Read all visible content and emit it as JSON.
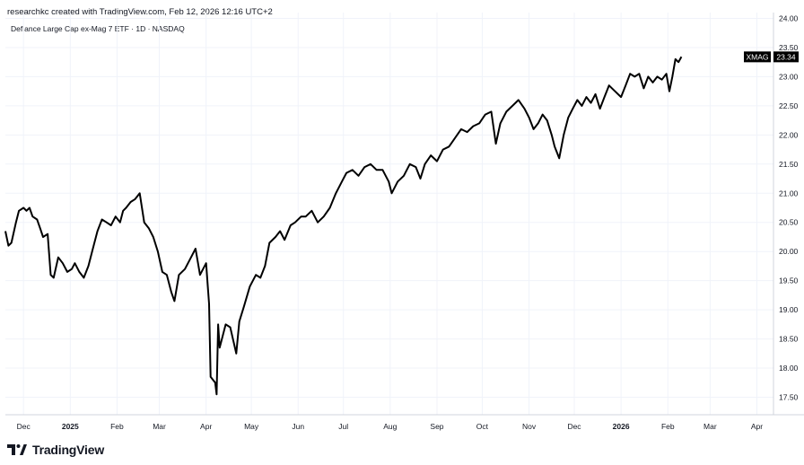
{
  "header": {
    "creator_line": "researchkc created with TradingView.com, Feb 12, 2026 12:16 UTC+2",
    "symbol_title": "Defiance Large Cap ex-Mag 7 ETF · 1D · NASDAQ"
  },
  "footer": {
    "brand": "TradingView",
    "logo_icon": "tradingview-logo-icon"
  },
  "colors": {
    "line": "#000000",
    "grid": "#f0f3fa",
    "axis": "#d1d4dc",
    "price_label_bg": "#000000",
    "price_label_text": "#ffffff"
  },
  "chart_data": {
    "type": "line",
    "title": "Defiance Large Cap ex-Mag 7 ETF · 1D · NASDAQ",
    "ticker": "XMAG",
    "last_price": "23.34",
    "xlabel": "",
    "ylabel": "",
    "ylim": [
      17.2,
      24.1
    ],
    "grid": true,
    "x_ticks": [
      {
        "label": "Dec",
        "date": "2024-12-01",
        "bold": false
      },
      {
        "label": "2025",
        "date": "2025-01-01",
        "bold": true
      },
      {
        "label": "Feb",
        "date": "2025-02-01",
        "bold": false
      },
      {
        "label": "Mar",
        "date": "2025-03-01",
        "bold": false
      },
      {
        "label": "Apr",
        "date": "2025-04-01",
        "bold": false
      },
      {
        "label": "May",
        "date": "2025-05-01",
        "bold": false
      },
      {
        "label": "Jun",
        "date": "2025-06-01",
        "bold": false
      },
      {
        "label": "Jul",
        "date": "2025-07-01",
        "bold": false
      },
      {
        "label": "Aug",
        "date": "2025-08-01",
        "bold": false
      },
      {
        "label": "Sep",
        "date": "2025-09-01",
        "bold": false
      },
      {
        "label": "Oct",
        "date": "2025-10-01",
        "bold": false
      },
      {
        "label": "Nov",
        "date": "2025-11-01",
        "bold": false
      },
      {
        "label": "Dec",
        "date": "2025-12-01",
        "bold": false
      },
      {
        "label": "2026",
        "date": "2026-01-01",
        "bold": true
      },
      {
        "label": "Feb",
        "date": "2026-02-01",
        "bold": false
      },
      {
        "label": "Mar",
        "date": "2026-03-01",
        "bold": false
      },
      {
        "label": "Apr",
        "date": "2026-04-01",
        "bold": false
      }
    ],
    "y_ticks": [
      "24.00",
      "23.50",
      "23.00",
      "22.50",
      "22.00",
      "21.50",
      "21.00",
      "20.50",
      "20.00",
      "19.50",
      "19.00",
      "18.50",
      "18.00",
      "17.50"
    ],
    "series": [
      {
        "points": [
          [
            "2024-11-19",
            20.35
          ],
          [
            "2024-11-21",
            20.1
          ],
          [
            "2024-11-23",
            20.15
          ],
          [
            "2024-11-26",
            20.5
          ],
          [
            "2024-11-28",
            20.7
          ],
          [
            "2024-12-01",
            20.75
          ],
          [
            "2024-12-03",
            20.7
          ],
          [
            "2024-12-05",
            20.75
          ],
          [
            "2024-12-07",
            20.6
          ],
          [
            "2024-12-10",
            20.55
          ],
          [
            "2024-12-12",
            20.4
          ],
          [
            "2024-12-14",
            20.25
          ],
          [
            "2024-12-17",
            20.3
          ],
          [
            "2024-12-19",
            19.6
          ],
          [
            "2024-12-21",
            19.55
          ],
          [
            "2024-12-24",
            19.9
          ],
          [
            "2024-12-27",
            19.8
          ],
          [
            "2024-12-30",
            19.65
          ],
          [
            "2025-01-02",
            19.7
          ],
          [
            "2025-01-04",
            19.8
          ],
          [
            "2025-01-07",
            19.65
          ],
          [
            "2025-01-10",
            19.55
          ],
          [
            "2025-01-13",
            19.75
          ],
          [
            "2025-01-16",
            20.05
          ],
          [
            "2025-01-19",
            20.35
          ],
          [
            "2025-01-22",
            20.55
          ],
          [
            "2025-01-25",
            20.5
          ],
          [
            "2025-01-28",
            20.45
          ],
          [
            "2025-01-31",
            20.6
          ],
          [
            "2025-02-03",
            20.5
          ],
          [
            "2025-02-05",
            20.7
          ],
          [
            "2025-02-07",
            20.75
          ],
          [
            "2025-02-10",
            20.85
          ],
          [
            "2025-02-13",
            20.9
          ],
          [
            "2025-02-16",
            21.0
          ],
          [
            "2025-02-19",
            20.5
          ],
          [
            "2025-02-22",
            20.4
          ],
          [
            "2025-02-25",
            20.25
          ],
          [
            "2025-02-28",
            20.0
          ],
          [
            "2025-03-03",
            19.65
          ],
          [
            "2025-03-06",
            19.6
          ],
          [
            "2025-03-09",
            19.3
          ],
          [
            "2025-03-11",
            19.15
          ],
          [
            "2025-03-14",
            19.6
          ],
          [
            "2025-03-18",
            19.7
          ],
          [
            "2025-03-21",
            19.85
          ],
          [
            "2025-03-25",
            20.05
          ],
          [
            "2025-03-28",
            19.6
          ],
          [
            "2025-04-01",
            19.8
          ],
          [
            "2025-04-03",
            19.1
          ],
          [
            "2025-04-04",
            17.85
          ],
          [
            "2025-04-07",
            17.75
          ],
          [
            "2025-04-08",
            17.55
          ],
          [
            "2025-04-09",
            18.75
          ],
          [
            "2025-04-10",
            18.35
          ],
          [
            "2025-04-14",
            18.75
          ],
          [
            "2025-04-17",
            18.7
          ],
          [
            "2025-04-21",
            18.25
          ],
          [
            "2025-04-23",
            18.8
          ],
          [
            "2025-04-26",
            19.05
          ],
          [
            "2025-04-30",
            19.4
          ],
          [
            "2025-05-04",
            19.6
          ],
          [
            "2025-05-07",
            19.55
          ],
          [
            "2025-05-10",
            19.75
          ],
          [
            "2025-05-13",
            20.15
          ],
          [
            "2025-05-17",
            20.25
          ],
          [
            "2025-05-20",
            20.35
          ],
          [
            "2025-05-23",
            20.2
          ],
          [
            "2025-05-27",
            20.45
          ],
          [
            "2025-05-30",
            20.5
          ],
          [
            "2025-06-03",
            20.6
          ],
          [
            "2025-06-06",
            20.6
          ],
          [
            "2025-06-10",
            20.7
          ],
          [
            "2025-06-14",
            20.5
          ],
          [
            "2025-06-18",
            20.6
          ],
          [
            "2025-06-22",
            20.75
          ],
          [
            "2025-06-26",
            21.0
          ],
          [
            "2025-06-30",
            21.2
          ],
          [
            "2025-07-03",
            21.35
          ],
          [
            "2025-07-07",
            21.4
          ],
          [
            "2025-07-11",
            21.3
          ],
          [
            "2025-07-15",
            21.45
          ],
          [
            "2025-07-19",
            21.5
          ],
          [
            "2025-07-23",
            21.4
          ],
          [
            "2025-07-27",
            21.4
          ],
          [
            "2025-07-31",
            21.2
          ],
          [
            "2025-08-02",
            21.0
          ],
          [
            "2025-08-06",
            21.2
          ],
          [
            "2025-08-10",
            21.3
          ],
          [
            "2025-08-14",
            21.5
          ],
          [
            "2025-08-18",
            21.45
          ],
          [
            "2025-08-21",
            21.25
          ],
          [
            "2025-08-24",
            21.5
          ],
          [
            "2025-08-28",
            21.65
          ],
          [
            "2025-09-01",
            21.55
          ],
          [
            "2025-09-05",
            21.75
          ],
          [
            "2025-09-09",
            21.8
          ],
          [
            "2025-09-13",
            21.95
          ],
          [
            "2025-09-17",
            22.1
          ],
          [
            "2025-09-21",
            22.05
          ],
          [
            "2025-09-25",
            22.15
          ],
          [
            "2025-09-29",
            22.2
          ],
          [
            "2025-10-03",
            22.35
          ],
          [
            "2025-10-07",
            22.4
          ],
          [
            "2025-10-10",
            21.85
          ],
          [
            "2025-10-13",
            22.2
          ],
          [
            "2025-10-17",
            22.4
          ],
          [
            "2025-10-21",
            22.5
          ],
          [
            "2025-10-25",
            22.6
          ],
          [
            "2025-10-29",
            22.45
          ],
          [
            "2025-11-01",
            22.3
          ],
          [
            "2025-11-04",
            22.1
          ],
          [
            "2025-11-07",
            22.2
          ],
          [
            "2025-11-10",
            22.35
          ],
          [
            "2025-11-13",
            22.25
          ],
          [
            "2025-11-16",
            22.0
          ],
          [
            "2025-11-18",
            21.8
          ],
          [
            "2025-11-21",
            21.6
          ],
          [
            "2025-11-24",
            22.0
          ],
          [
            "2025-11-27",
            22.3
          ],
          [
            "2025-11-30",
            22.45
          ],
          [
            "2025-12-03",
            22.6
          ],
          [
            "2025-12-06",
            22.5
          ],
          [
            "2025-12-09",
            22.65
          ],
          [
            "2025-12-12",
            22.55
          ],
          [
            "2025-12-15",
            22.7
          ],
          [
            "2025-12-18",
            22.45
          ],
          [
            "2025-12-21",
            22.65
          ],
          [
            "2025-12-24",
            22.85
          ],
          [
            "2025-12-28",
            22.75
          ],
          [
            "2026-01-01",
            22.65
          ],
          [
            "2026-01-04",
            22.85
          ],
          [
            "2026-01-07",
            23.05
          ],
          [
            "2026-01-10",
            23.0
          ],
          [
            "2026-01-13",
            23.05
          ],
          [
            "2026-01-16",
            22.8
          ],
          [
            "2026-01-19",
            23.0
          ],
          [
            "2026-01-22",
            22.9
          ],
          [
            "2026-01-25",
            23.0
          ],
          [
            "2026-01-28",
            22.95
          ],
          [
            "2026-01-31",
            23.05
          ],
          [
            "2026-02-02",
            22.75
          ],
          [
            "2026-02-04",
            23.0
          ],
          [
            "2026-02-06",
            23.3
          ],
          [
            "2026-02-08",
            23.25
          ],
          [
            "2026-02-10",
            23.34
          ]
        ]
      }
    ]
  }
}
